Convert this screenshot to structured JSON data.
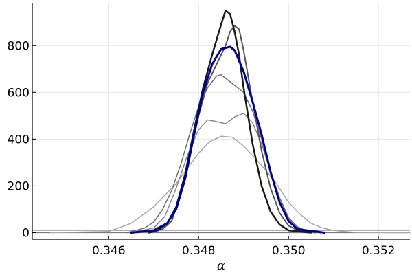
{
  "chart_data": {
    "type": "line",
    "title": "",
    "xlabel": "α",
    "ylabel": "",
    "xlim": [
      0.3443,
      0.3527
    ],
    "ylim": [
      -28,
      980
    ],
    "x_ticks": [
      0.346,
      0.348,
      0.35,
      0.352
    ],
    "x_tick_labels": [
      "0.346",
      "0.348",
      "0.350",
      "0.352"
    ],
    "y_ticks": [
      0,
      200,
      400,
      600,
      800
    ],
    "y_tick_labels": [
      "0",
      "200",
      "400",
      "600",
      "800"
    ],
    "grid": true,
    "legend": "none",
    "reference_lines": [
      0,
      10
    ],
    "series": [
      {
        "color": "#a8a8a8",
        "width": 1.5,
        "points": [
          [
            0.3447,
            0
          ],
          [
            0.346,
            5
          ],
          [
            0.3465,
            40
          ],
          [
            0.347,
            110
          ],
          [
            0.3475,
            210
          ],
          [
            0.348,
            340
          ],
          [
            0.34825,
            390
          ],
          [
            0.3485,
            412
          ],
          [
            0.34875,
            408
          ],
          [
            0.349,
            370
          ],
          [
            0.34925,
            320
          ],
          [
            0.3495,
            265
          ],
          [
            0.34975,
            205
          ],
          [
            0.35,
            130
          ],
          [
            0.35025,
            80
          ],
          [
            0.3505,
            40
          ],
          [
            0.35075,
            20
          ],
          [
            0.351,
            10
          ],
          [
            0.35125,
            5
          ],
          [
            0.3515,
            1
          ],
          [
            0.3527,
            0
          ]
        ]
      },
      {
        "color": "#888888",
        "width": 1.5,
        "points": [
          [
            0.3465,
            0
          ],
          [
            0.347,
            20
          ],
          [
            0.34725,
            70
          ],
          [
            0.3475,
            190
          ],
          [
            0.34775,
            330
          ],
          [
            0.348,
            440
          ],
          [
            0.3482,
            482
          ],
          [
            0.3484,
            475
          ],
          [
            0.3486,
            465
          ],
          [
            0.3488,
            495
          ],
          [
            0.349,
            510
          ],
          [
            0.3492,
            470
          ],
          [
            0.3494,
            380
          ],
          [
            0.3496,
            260
          ],
          [
            0.3498,
            150
          ],
          [
            0.35,
            60
          ],
          [
            0.3502,
            20
          ],
          [
            0.3504,
            5
          ],
          [
            0.3507,
            0
          ]
        ]
      },
      {
        "color": "#707070",
        "width": 1.5,
        "points": [
          [
            0.3464,
            0
          ],
          [
            0.3468,
            20
          ],
          [
            0.347,
            45
          ],
          [
            0.3472,
            100
          ],
          [
            0.3474,
            180
          ],
          [
            0.3476,
            290
          ],
          [
            0.3478,
            420
          ],
          [
            0.348,
            540
          ],
          [
            0.3482,
            620
          ],
          [
            0.3484,
            670
          ],
          [
            0.3485,
            675
          ],
          [
            0.3486,
            660
          ],
          [
            0.3488,
            630
          ],
          [
            0.349,
            600
          ],
          [
            0.3492,
            520
          ],
          [
            0.3494,
            400
          ],
          [
            0.3496,
            260
          ],
          [
            0.3498,
            150
          ],
          [
            0.35,
            65
          ],
          [
            0.3502,
            25
          ],
          [
            0.3504,
            8
          ],
          [
            0.3507,
            0
          ]
        ]
      },
      {
        "color": "#555555",
        "width": 2,
        "points": [
          [
            0.3469,
            0
          ],
          [
            0.3472,
            15
          ],
          [
            0.3474,
            50
          ],
          [
            0.3476,
            160
          ],
          [
            0.3478,
            330
          ],
          [
            0.348,
            500
          ],
          [
            0.3482,
            640
          ],
          [
            0.3484,
            720
          ],
          [
            0.3486,
            800
          ],
          [
            0.3487,
            860
          ],
          [
            0.3488,
            885
          ],
          [
            0.3489,
            870
          ],
          [
            0.349,
            780
          ],
          [
            0.3492,
            560
          ],
          [
            0.3494,
            350
          ],
          [
            0.3496,
            190
          ],
          [
            0.3498,
            85
          ],
          [
            0.35,
            30
          ],
          [
            0.3502,
            10
          ],
          [
            0.3506,
            0
          ]
        ]
      },
      {
        "color": "#1a1a1a",
        "width": 2.5,
        "points": [
          [
            0.3469,
            0
          ],
          [
            0.3471,
            10
          ],
          [
            0.3473,
            40
          ],
          [
            0.3475,
            110
          ],
          [
            0.3477,
            250
          ],
          [
            0.3479,
            440
          ],
          [
            0.3481,
            620
          ],
          [
            0.3483,
            760
          ],
          [
            0.3485,
            890
          ],
          [
            0.3486,
            950
          ],
          [
            0.3487,
            935
          ],
          [
            0.3488,
            860
          ],
          [
            0.3489,
            760
          ],
          [
            0.349,
            620
          ],
          [
            0.3492,
            380
          ],
          [
            0.3494,
            200
          ],
          [
            0.3496,
            90
          ],
          [
            0.3498,
            35
          ],
          [
            0.35,
            10
          ],
          [
            0.3505,
            0
          ]
        ]
      },
      {
        "color": "#000099",
        "width": 3,
        "points": [
          [
            0.3465,
            0
          ],
          [
            0.347,
            10
          ],
          [
            0.3473,
            40
          ],
          [
            0.3475,
            100
          ],
          [
            0.3477,
            230
          ],
          [
            0.3479,
            420
          ],
          [
            0.3481,
            600
          ],
          [
            0.3483,
            720
          ],
          [
            0.3485,
            785
          ],
          [
            0.3487,
            795
          ],
          [
            0.3488,
            780
          ],
          [
            0.349,
            690
          ],
          [
            0.3492,
            560
          ],
          [
            0.3494,
            420
          ],
          [
            0.3496,
            260
          ],
          [
            0.3498,
            130
          ],
          [
            0.35,
            50
          ],
          [
            0.3502,
            15
          ],
          [
            0.3508,
            0
          ]
        ]
      }
    ]
  }
}
